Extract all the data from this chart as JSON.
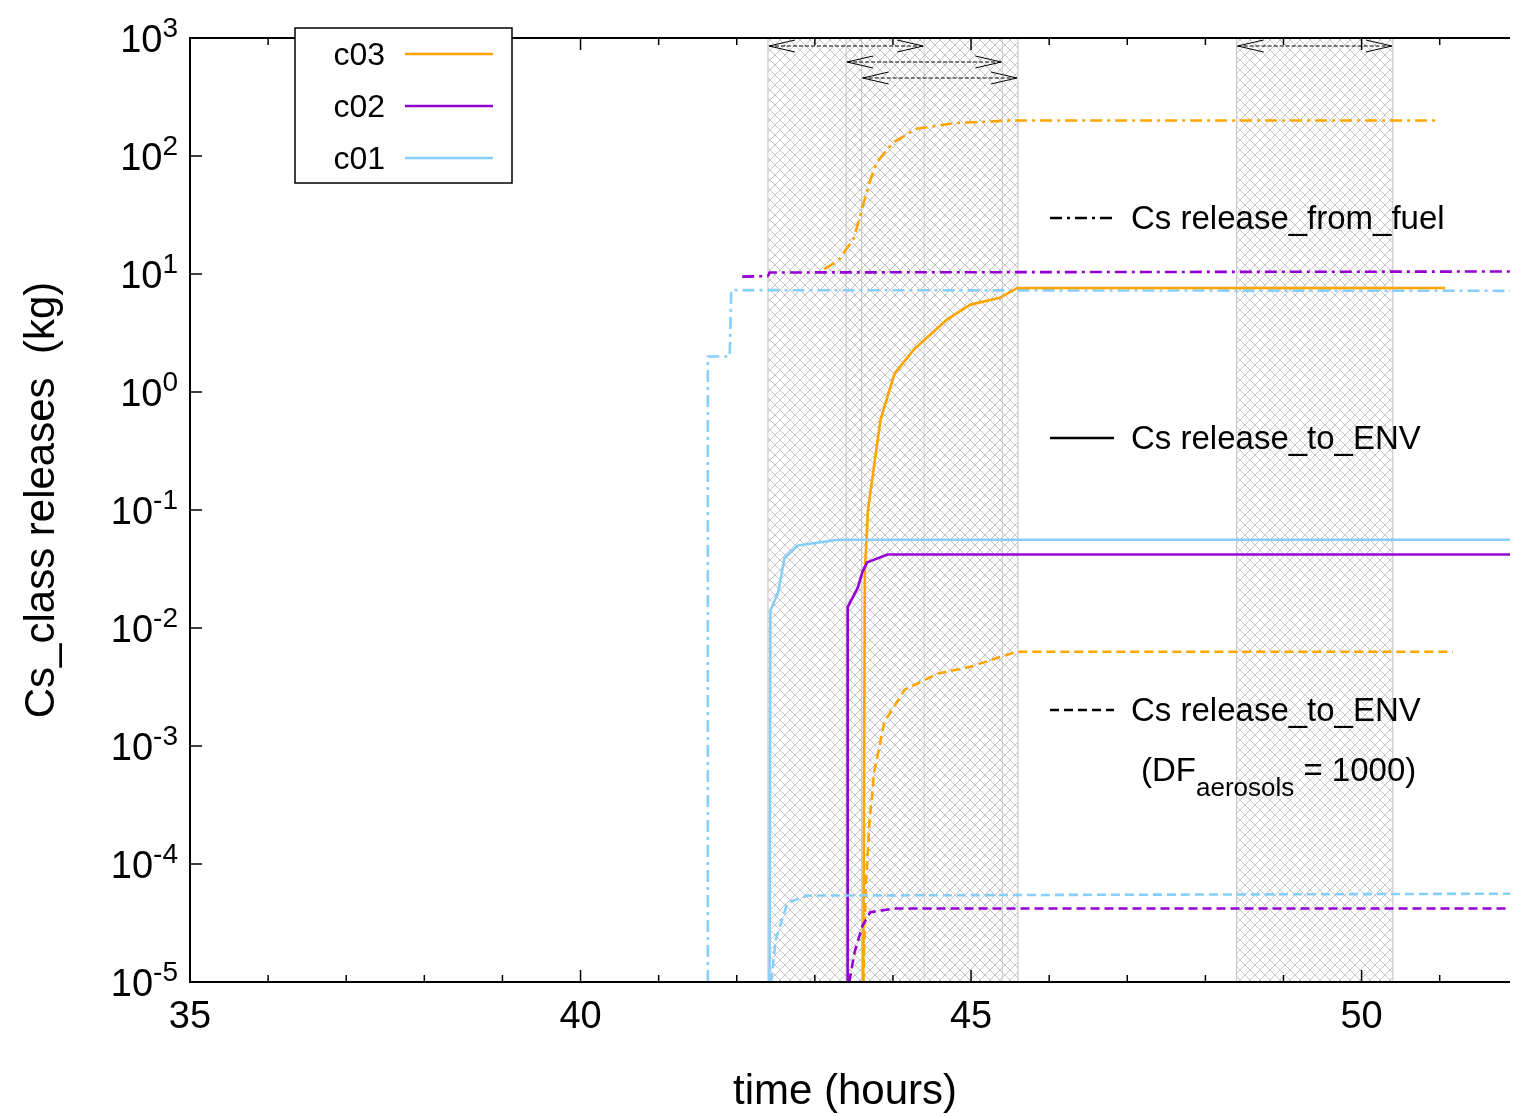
{
  "chart_data": {
    "type": "line",
    "xlabel": "time (hours)",
    "ylabel": "Cs_class releases  (kg)",
    "log": "y",
    "grid": false,
    "legend": "top left",
    "xlim": [
      35,
      51.9
    ],
    "ylim": [
      1e-05,
      1000
    ],
    "xticks": [
      35,
      {
        "value": 36,
        "label": null
      },
      {
        "value": 37,
        "label": null
      },
      {
        "value": 38,
        "label": null
      },
      {
        "value": 39,
        "label": null
      },
      40,
      {
        "value": 41,
        "label": null
      },
      {
        "value": 42,
        "label": null
      },
      {
        "value": 43,
        "label": null
      },
      {
        "value": 44,
        "label": null
      },
      45,
      {
        "value": 46,
        "label": null
      },
      {
        "value": 47,
        "label": null
      },
      {
        "value": 48,
        "label": null
      },
      {
        "value": 49,
        "label": null
      },
      50,
      {
        "value": 51,
        "label": null
      }
    ],
    "yticks": [
      {
        "value": 1e-05,
        "label": "10$^{-5}$"
      },
      {
        "value": 0.0001,
        "label": "10$^{-4}$"
      },
      {
        "value": 0.001,
        "label": "10$^{-3}$"
      },
      {
        "value": 0.01,
        "label": "10$^{-2}$"
      },
      {
        "value": 0.1,
        "label": "10$^{-1}$"
      },
      {
        "value": 1,
        "label": "10$^{0}$"
      },
      {
        "value": 10,
        "label": "10$^{1}$"
      },
      {
        "value": 100,
        "label": "10$^{2}$"
      },
      {
        "value": 1000,
        "label": "10$^{3}$"
      }
    ],
    "series": [
      {
        "color": "#ffa500",
        "line_style": "dashdot",
        "x": [
          43.12,
          43.3,
          43.5,
          43.6,
          43.7,
          43.8,
          44.0,
          44.3,
          44.8,
          45.5,
          51.0
        ],
        "values": [
          11,
          13,
          20,
          35,
          60,
          90,
          130,
          170,
          190,
          200,
          200
        ]
      },
      {
        "color": "#9400d3",
        "line_style": "dashdot",
        "x": [
          42.07,
          42.4,
          42.42,
          51.9
        ],
        "values": [
          9.5,
          9.6,
          10.3,
          10.5
        ]
      },
      {
        "color": "#87cefa",
        "line_style": "dashdot",
        "x": [
          41.63,
          41.63,
          41.91,
          41.93,
          51.9
        ],
        "values": [
          1e-05,
          2,
          2,
          7.3,
          7.2
        ]
      },
      {
        "name": "c03",
        "color": "#ffa500",
        "line_style": "solid",
        "x": [
          43.62,
          43.64,
          43.68,
          43.84,
          44.02,
          44.27,
          44.69,
          44.99,
          45.37,
          45.59,
          51.07
        ],
        "values": [
          1e-05,
          0.03,
          0.1,
          0.58,
          1.43,
          2.3,
          4.1,
          5.5,
          6.3,
          7.6,
          7.6
        ]
      },
      {
        "name": "c02",
        "color": "#9400d3",
        "line_style": "solid",
        "x": [
          43.42,
          43.42,
          43.55,
          43.61,
          43.67,
          43.93,
          51.9
        ],
        "values": [
          1e-05,
          0.015,
          0.022,
          0.03,
          0.036,
          0.042,
          0.042
        ]
      },
      {
        "name": "c01",
        "color": "#87cefa",
        "line_style": "solid",
        "x": [
          42.42,
          42.43,
          42.53,
          42.61,
          42.78,
          43.3,
          51.9
        ],
        "values": [
          1e-05,
          0.014,
          0.02,
          0.039,
          0.05,
          0.056,
          0.056
        ]
      },
      {
        "color": "#ffa500",
        "line_style": "dashed",
        "x": [
          43.62,
          43.65,
          43.7,
          43.76,
          43.89,
          44.15,
          44.57,
          44.99,
          45.42,
          45.59,
          51.17
        ],
        "values": [
          1e-05,
          6e-05,
          0.00023,
          0.0006,
          0.0016,
          0.003,
          0.0041,
          0.0047,
          0.0058,
          0.0063,
          0.0063
        ]
      },
      {
        "color": "#9400d3",
        "line_style": "dashed",
        "x": [
          43.44,
          43.51,
          43.61,
          43.71,
          44.02,
          51.9
        ],
        "values": [
          1e-05,
          1.8e-05,
          3e-05,
          3.9e-05,
          4.2e-05,
          4.2e-05
        ]
      },
      {
        "color": "#87cefa",
        "line_style": "dashed",
        "x": [
          42.44,
          42.5,
          42.65,
          42.91,
          51.9
        ],
        "values": [
          1e-05,
          2.3e-05,
          4.7e-05,
          5.4e-05,
          5.6e-05
        ]
      }
    ],
    "bands": [
      {
        "axis": "x",
        "from": 42.4,
        "to": 44.4,
        "color": "#c0c0c0"
      },
      {
        "axis": "x",
        "from": 43.4,
        "to": 45.4,
        "color": "#c0c0c0"
      },
      {
        "axis": "x",
        "from": 43.6,
        "to": 45.6,
        "color": "#c0c0c0"
      },
      {
        "axis": "x",
        "from": 48.4,
        "to": 50.4,
        "color": "#c0c0c0"
      }
    ],
    "annotations": [
      "Cs release_from_fuel",
      "Cs release_to_ENV",
      "Cs release_to_ENV",
      "(DF$_{aerosols}$ = 1000)"
    ]
  }
}
